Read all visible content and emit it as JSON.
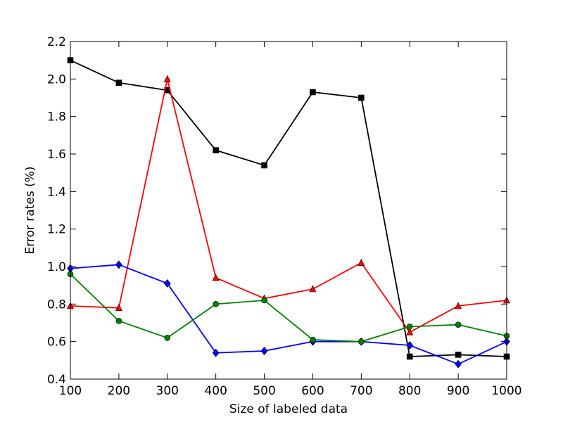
{
  "chart_data": {
    "type": "line",
    "xlabel": "Size of labeled data",
    "ylabel": "Error rates (%)",
    "x": [
      100,
      200,
      300,
      400,
      500,
      600,
      700,
      800,
      900,
      1000
    ],
    "xlim": [
      100,
      1000
    ],
    "xticks": [
      100,
      200,
      300,
      400,
      500,
      600,
      700,
      800,
      900,
      1000
    ],
    "ylim": [
      0.4,
      2.2
    ],
    "yticks": [
      0.4,
      0.6,
      0.8,
      {
        "value": 1,
        "label": "1.0"
      },
      1.2,
      1.4,
      1.6,
      1.8,
      {
        "value": 2,
        "label": "2.0"
      },
      2.2
    ],
    "series": [
      {
        "color": "#000000",
        "marker": "square",
        "values": [
          2.1,
          1.98,
          1.94,
          1.62,
          1.54,
          1.93,
          1.9,
          0.52,
          0.53,
          0.52
        ]
      },
      {
        "color": "#ff0000",
        "marker": "triangle",
        "values": [
          0.79,
          0.78,
          2.0,
          0.94,
          0.83,
          0.88,
          1.02,
          0.65,
          0.79,
          0.82
        ]
      },
      {
        "color": "#0000ff",
        "marker": "diamond",
        "values": [
          0.99,
          1.01,
          0.91,
          0.54,
          0.55,
          0.6,
          0.6,
          0.58,
          0.48,
          0.6
        ]
      },
      {
        "color": "#008000",
        "marker": "circle",
        "values": [
          0.96,
          0.71,
          0.62,
          0.8,
          0.82,
          0.61,
          0.6,
          0.68,
          0.69,
          0.63
        ]
      }
    ]
  }
}
